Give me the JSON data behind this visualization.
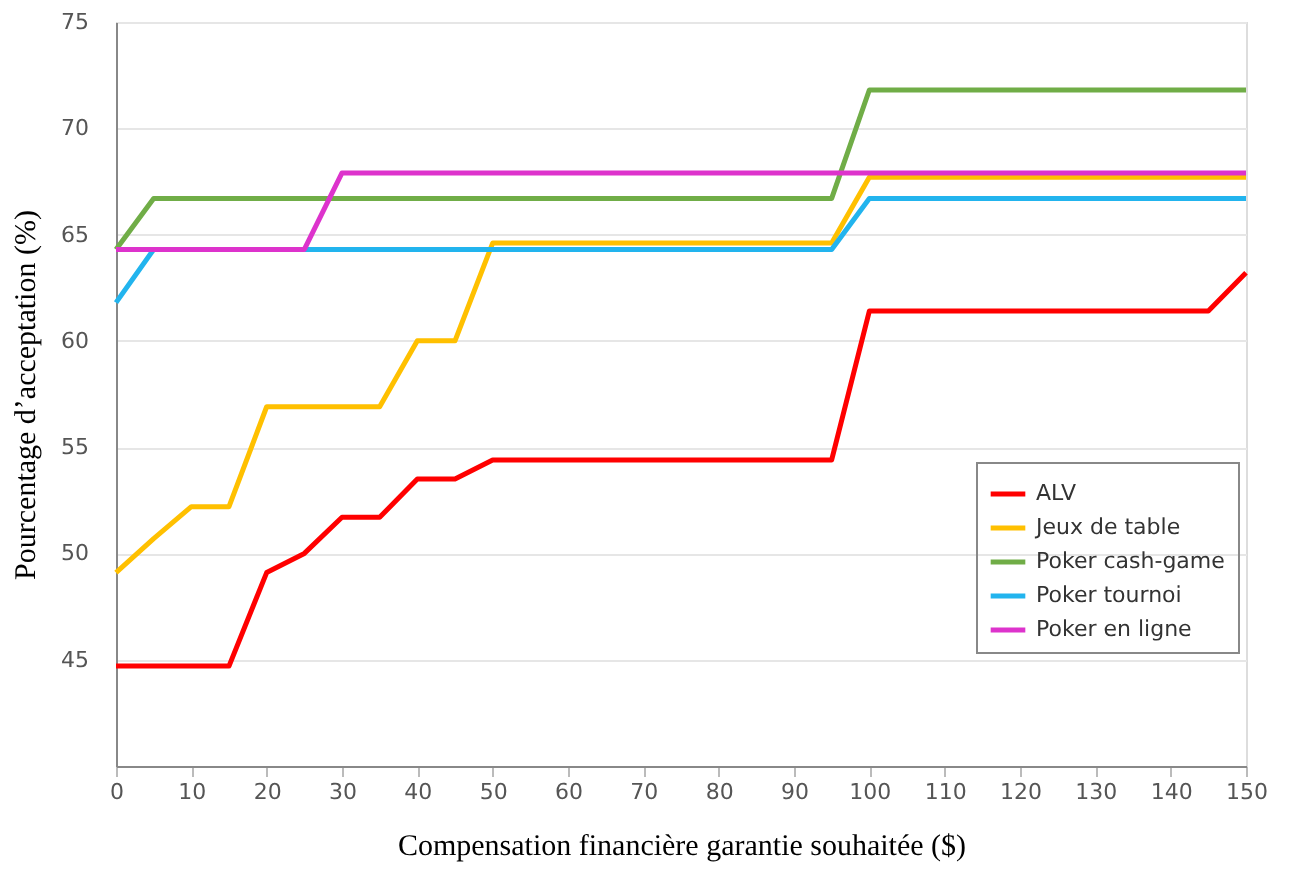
{
  "chart_data": {
    "type": "line",
    "xlabel": "Compensation financière garantie souhaitée ($)",
    "ylabel": "Pourcentage d’acceptation (%)",
    "x": [
      0,
      5,
      10,
      15,
      20,
      25,
      30,
      35,
      40,
      45,
      50,
      55,
      60,
      65,
      70,
      75,
      80,
      85,
      90,
      95,
      100,
      105,
      110,
      115,
      120,
      125,
      130,
      135,
      140,
      145,
      150
    ],
    "series": [
      {
        "name": "ALV",
        "color": "#ff0000",
        "values": [
          44.7,
          44.7,
          44.7,
          44.7,
          49.1,
          50.0,
          51.7,
          51.7,
          53.5,
          53.5,
          54.4,
          54.4,
          54.4,
          54.4,
          54.4,
          54.4,
          54.4,
          54.4,
          54.4,
          54.4,
          61.4,
          61.4,
          61.4,
          61.4,
          61.4,
          61.4,
          61.4,
          61.4,
          61.4,
          61.4,
          63.2
        ]
      },
      {
        "name": "Jeux de table",
        "color": "#ffc000",
        "values": [
          49.1,
          50.7,
          52.2,
          52.2,
          56.9,
          56.9,
          56.9,
          56.9,
          60.0,
          60.0,
          64.6,
          64.6,
          64.6,
          64.6,
          64.6,
          64.6,
          64.6,
          64.6,
          64.6,
          64.6,
          67.7,
          67.7,
          67.7,
          67.7,
          67.7,
          67.7,
          67.7,
          67.7,
          67.7,
          67.7,
          67.7
        ]
      },
      {
        "name": "Poker cash-game",
        "color": "#70ad47",
        "values": [
          64.3,
          66.7,
          66.7,
          66.7,
          66.7,
          66.7,
          66.7,
          66.7,
          66.7,
          66.7,
          66.7,
          66.7,
          66.7,
          66.7,
          66.7,
          66.7,
          66.7,
          66.7,
          66.7,
          66.7,
          71.8,
          71.8,
          71.8,
          71.8,
          71.8,
          71.8,
          71.8,
          71.8,
          71.8,
          71.8,
          71.8
        ]
      },
      {
        "name": "Poker tournoi",
        "color": "#22b4ee",
        "values": [
          61.8,
          64.3,
          null,
          null,
          null,
          64.3,
          64.3,
          64.3,
          64.3,
          64.3,
          64.3,
          64.3,
          64.3,
          64.3,
          64.3,
          64.3,
          64.3,
          64.3,
          64.3,
          64.3,
          66.7,
          66.7,
          66.7,
          66.7,
          66.7,
          66.7,
          66.7,
          66.7,
          66.7,
          66.7,
          66.7
        ]
      },
      {
        "name": "Poker en ligne",
        "color": "#dd33cc",
        "values": [
          64.3,
          64.3,
          64.3,
          64.3,
          64.3,
          64.3,
          67.9,
          67.9,
          67.9,
          67.9,
          67.9,
          67.9,
          67.9,
          67.9,
          67.9,
          67.9,
          67.9,
          67.9,
          67.9,
          67.9,
          67.9,
          67.9,
          67.9,
          67.9,
          67.9,
          67.9,
          67.9,
          67.9,
          67.9,
          67.9,
          67.9
        ]
      }
    ],
    "xlim": [
      0,
      150
    ],
    "xticks": [
      0,
      10,
      20,
      30,
      40,
      50,
      60,
      70,
      80,
      90,
      100,
      110,
      120,
      130,
      140,
      150
    ],
    "ylim": [
      40,
      75
    ],
    "yticks": [
      45,
      50,
      55,
      60,
      65,
      70,
      75
    ],
    "grid": "y",
    "legend": "bottom right",
    "marker": "none",
    "line_style": "solid"
  }
}
